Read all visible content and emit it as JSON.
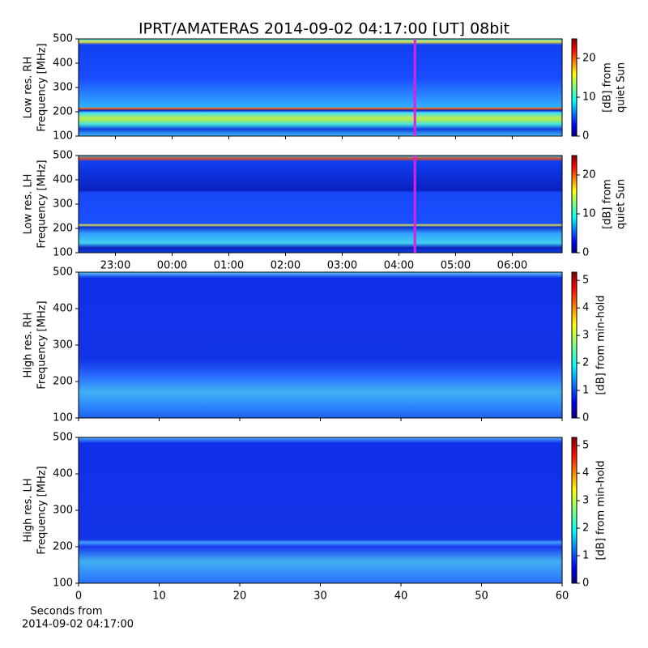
{
  "title": "IPRT/AMATERAS 2014-09-02 04:17:00 [UT]   08bit",
  "chart_data": [
    {
      "type": "heatmap",
      "ylabel": [
        "Low res. RH",
        "Frequency [MHz]"
      ],
      "ylim": [
        100,
        500
      ],
      "yticks": [
        100,
        200,
        300,
        400,
        500
      ],
      "colorbar_label": [
        "[dB] from",
        "quiet Sun"
      ],
      "clim": [
        0,
        25
      ],
      "cticks": [
        0,
        10,
        20
      ],
      "marker_x": 4.283,
      "marker_color": "#e020e0"
    },
    {
      "type": "heatmap",
      "ylabel": [
        "Low res. LH",
        "Frequency [MHz]"
      ],
      "ylim": [
        100,
        500
      ],
      "yticks": [
        100,
        200,
        300,
        400,
        500
      ],
      "colorbar_label": [
        "[dB] from",
        "quiet Sun"
      ],
      "clim": [
        0,
        25
      ],
      "cticks": [
        0,
        10,
        20
      ],
      "marker_x": 4.283,
      "marker_color": "#e020e0",
      "xlim": [
        -1.65,
        6.88
      ],
      "xticks": [
        {
          "value": -1,
          "label": "23:00"
        },
        {
          "value": 0,
          "label": "00:00"
        },
        {
          "value": 1,
          "label": "01:00"
        },
        {
          "value": 2,
          "label": "02:00"
        },
        {
          "value": 3,
          "label": "03:00"
        },
        {
          "value": 4,
          "label": "04:00"
        },
        {
          "value": 5,
          "label": "05:00"
        },
        {
          "value": 6,
          "label": "06:00"
        }
      ]
    },
    {
      "type": "heatmap",
      "ylabel": [
        "High res. RH",
        "Frequency [MHz]"
      ],
      "ylim": [
        100,
        500
      ],
      "yticks": [
        100,
        200,
        300,
        400,
        500
      ],
      "colorbar_label": [
        "[dB] from min-hold"
      ],
      "clim": [
        0,
        5.3
      ],
      "cticks": [
        0,
        1,
        2,
        3,
        4,
        5
      ]
    },
    {
      "type": "heatmap",
      "ylabel": [
        "High res. LH",
        "Frequency [MHz]"
      ],
      "ylim": [
        100,
        500
      ],
      "yticks": [
        100,
        200,
        300,
        400,
        500
      ],
      "colorbar_label": [
        "[dB] from min-hold"
      ],
      "clim": [
        0,
        5.3
      ],
      "cticks": [
        0,
        1,
        2,
        3,
        4,
        5
      ],
      "xlim": [
        0,
        60
      ],
      "xticks": [
        0,
        10,
        20,
        30,
        40,
        50,
        60
      ],
      "xlabel": [
        "Seconds from",
        "2014-09-02 04:17:00"
      ]
    }
  ]
}
